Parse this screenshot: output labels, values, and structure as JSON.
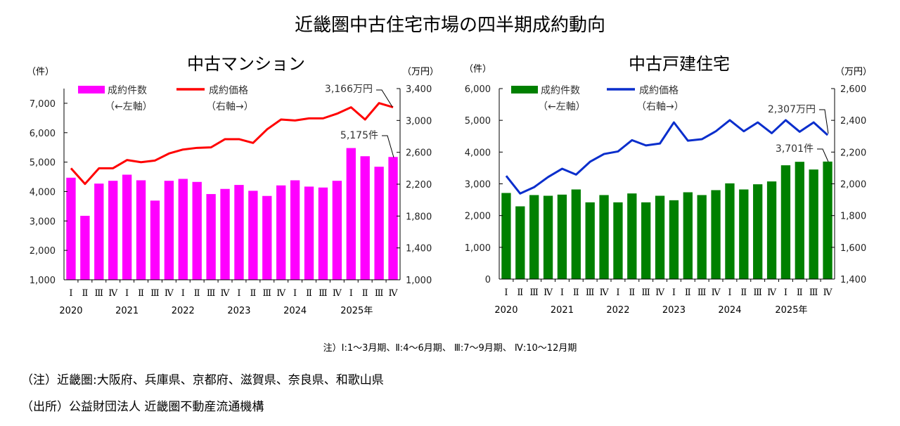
{
  "title": "近畿圏中古住宅市場の四半期成約動向",
  "footnote_quarters": "注）Ⅰ:1～3月期、Ⅱ:4～6月期、 Ⅲ:7～9月期、 Ⅳ:10～12月期",
  "note_region": "（注）近畿圏:大阪府、兵庫県、京都府、滋賀県、奈良県、和歌山県",
  "note_source": "（出所）公益財団法人  近畿圏不動産流通機構",
  "chart_data": [
    {
      "type": "bar+line",
      "title": "中古マンション",
      "ylabel_left": "（件）",
      "ylabel_right": "（万円）",
      "quarter_labels": [
        "Ⅰ",
        "Ⅱ",
        "Ⅲ",
        "Ⅳ",
        "Ⅰ",
        "Ⅱ",
        "Ⅲ",
        "Ⅳ",
        "Ⅰ",
        "Ⅱ",
        "Ⅲ",
        "Ⅳ",
        "Ⅰ",
        "Ⅱ",
        "Ⅲ",
        "Ⅳ",
        "Ⅰ",
        "Ⅱ",
        "Ⅲ",
        "Ⅳ",
        "Ⅰ",
        "Ⅱ",
        "Ⅲ",
        "Ⅳ"
      ],
      "year_labels": [
        "2020",
        "2021",
        "2022",
        "2023",
        "2024",
        "2025年"
      ],
      "ylim_left": [
        1000,
        7500
      ],
      "yticks_left": [
        1000,
        2000,
        3000,
        4000,
        5000,
        6000,
        7000
      ],
      "ytick_labels_left": [
        "1,000",
        "2,000",
        "3,000",
        "4,000",
        "5,000",
        "6,000",
        "7,000"
      ],
      "ylim_right": [
        1000,
        3400
      ],
      "yticks_right": [
        1000,
        1400,
        1800,
        2200,
        2600,
        3000,
        3400
      ],
      "ytick_labels_right": [
        "1,000",
        "1,400",
        "1,800",
        "2,200",
        "2,600",
        "3,000",
        "3,400"
      ],
      "series": [
        {
          "name": "成約件数",
          "legend_sub": "（←左軸）",
          "kind": "bar",
          "axis": "left",
          "color": "#FF00FF",
          "values": [
            4470,
            3175,
            4270,
            4365,
            4573,
            4382,
            3692,
            4365,
            4430,
            4327,
            3914,
            4089,
            4224,
            4025,
            3850,
            4208,
            4382,
            4168,
            4136,
            4365,
            5478,
            5200,
            4843,
            5175
          ]
        },
        {
          "name": "成約価格",
          "legend_sub": "（右軸→）",
          "kind": "line",
          "axis": "right",
          "color": "#FF0000",
          "values": [
            2400,
            2203,
            2400,
            2400,
            2503,
            2476,
            2497,
            2585,
            2635,
            2656,
            2662,
            2765,
            2765,
            2718,
            2888,
            3012,
            3000,
            3026,
            3026,
            3085,
            3165,
            3012,
            3218,
            3166
          ]
        }
      ],
      "annotations": {
        "line_last": "3,166万円",
        "bar_last": "5,175件"
      }
    },
    {
      "type": "bar+line",
      "title": "中古戸建住宅",
      "ylabel_left": "（件）",
      "ylabel_right": "（万円）",
      "quarter_labels": [
        "Ⅰ",
        "Ⅱ",
        "Ⅲ",
        "Ⅳ",
        "Ⅰ",
        "Ⅱ",
        "Ⅲ",
        "Ⅳ",
        "Ⅰ",
        "Ⅱ",
        "Ⅲ",
        "Ⅳ",
        "Ⅰ",
        "Ⅱ",
        "Ⅲ",
        "Ⅳ",
        "Ⅰ",
        "Ⅱ",
        "Ⅲ",
        "Ⅳ",
        "Ⅰ",
        "Ⅱ",
        "Ⅲ",
        "Ⅳ"
      ],
      "year_labels": [
        "2020",
        "2021",
        "2022",
        "2023",
        "2024",
        "2025年"
      ],
      "ylim_left": [
        0,
        6000
      ],
      "yticks_left": [
        0,
        1000,
        2000,
        3000,
        4000,
        5000,
        6000
      ],
      "ytick_labels_left": [
        "0",
        "1,000",
        "2,000",
        "3,000",
        "4,000",
        "5,000",
        "6,000"
      ],
      "ylim_right": [
        1400,
        2600
      ],
      "yticks_right": [
        1400,
        1600,
        1800,
        2000,
        2200,
        2400,
        2600
      ],
      "ytick_labels_right": [
        "1,400",
        "1,600",
        "1,800",
        "2,000",
        "2,200",
        "2,400",
        "2,600"
      ],
      "series": [
        {
          "name": "成約件数",
          "legend_sub": "（←左軸）",
          "kind": "bar",
          "axis": "left",
          "color": "#008000",
          "values": [
            2712,
            2291,
            2646,
            2624,
            2660,
            2823,
            2417,
            2646,
            2417,
            2697,
            2417,
            2624,
            2483,
            2734,
            2646,
            2801,
            3015,
            2823,
            2986,
            3075,
            3584,
            3694,
            3451,
            3701
          ]
        },
        {
          "name": "成約価格",
          "legend_sub": "（右軸→）",
          "kind": "line",
          "axis": "right",
          "color": "#0A2ECC",
          "values": [
            2050,
            1939,
            1979,
            2043,
            2095,
            2058,
            2139,
            2188,
            2204,
            2275,
            2242,
            2254,
            2387,
            2272,
            2281,
            2331,
            2401,
            2331,
            2387,
            2319,
            2401,
            2328,
            2387,
            2307
          ]
        }
      ],
      "annotations": {
        "line_last": "2,307万円",
        "bar_last": "3,701件"
      }
    }
  ]
}
